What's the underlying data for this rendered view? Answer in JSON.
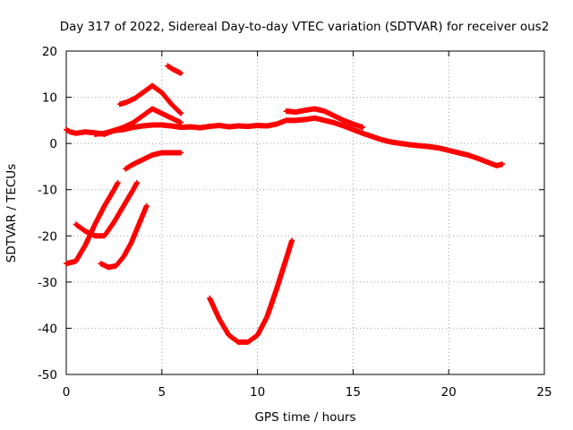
{
  "chart_data": {
    "type": "scatter",
    "title": "Day 317 of 2022, Sidereal Day-to-day VTEC variation (SDTVAR) for receiver ous2",
    "xlabel": "GPS time / hours",
    "ylabel": "SDTVAR / TECUs",
    "xlim": [
      0,
      25
    ],
    "ylim": [
      -50,
      20
    ],
    "xticks": [
      0,
      5,
      10,
      15,
      20,
      25
    ],
    "yticks": [
      -50,
      -40,
      -30,
      -20,
      -10,
      0,
      10,
      20
    ],
    "grid": true,
    "marker": "+",
    "series_color": "#ff0000",
    "series": [
      {
        "name": "main band",
        "x": [
          0.0,
          0.2,
          0.5,
          1.0,
          1.5,
          2.0,
          2.5,
          3.0,
          3.5,
          4.0,
          4.5,
          5.0,
          5.5,
          6.0,
          6.5,
          7.0,
          7.5,
          8.0,
          8.5,
          9.0,
          9.5,
          10.0,
          10.5,
          11.0,
          11.5,
          12.0,
          12.5,
          13.0,
          13.5,
          14.0,
          14.5,
          15.0,
          15.5,
          16.0,
          16.5,
          17.0,
          17.5,
          18.0,
          18.5,
          19.0,
          19.5,
          20.0,
          20.5,
          21.0,
          21.5,
          22.0,
          22.5,
          22.8
        ],
        "y": [
          3.0,
          2.5,
          2.2,
          2.5,
          2.3,
          2.0,
          2.8,
          3.0,
          3.5,
          3.8,
          4.0,
          4.0,
          3.8,
          3.5,
          3.6,
          3.4,
          3.7,
          3.9,
          3.6,
          3.8,
          3.7,
          3.9,
          3.8,
          4.2,
          5.0,
          5.0,
          5.2,
          5.5,
          5.0,
          4.5,
          3.8,
          3.0,
          2.2,
          1.5,
          0.8,
          0.3,
          0.0,
          -0.3,
          -0.5,
          -0.7,
          -1.0,
          -1.5,
          -2.0,
          -2.5,
          -3.2,
          -4.0,
          -4.8,
          -4.5
        ]
      },
      {
        "name": "arc rising to 7",
        "x": [
          1.5,
          2.0,
          2.5,
          3.0,
          3.5,
          4.0,
          4.5,
          5.0,
          5.5,
          6.0
        ],
        "y": [
          2.0,
          2.2,
          2.8,
          3.5,
          4.5,
          6.0,
          7.5,
          6.5,
          5.5,
          4.5
        ]
      },
      {
        "name": "arc peaking at 12",
        "x": [
          2.8,
          3.2,
          3.6,
          4.0,
          4.5,
          5.0,
          5.5,
          6.0
        ],
        "y": [
          8.5,
          9.0,
          9.8,
          11.0,
          12.5,
          11.0,
          8.5,
          6.5
        ]
      },
      {
        "name": "segment near 16",
        "x": [
          5.3,
          5.6,
          6.0
        ],
        "y": [
          16.8,
          16.0,
          15.2
        ]
      },
      {
        "name": "arc near -2",
        "x": [
          3.1,
          3.5,
          4.0,
          4.5,
          5.0,
          5.5,
          6.0
        ],
        "y": [
          -5.5,
          -4.5,
          -3.5,
          -2.5,
          -2.0,
          -2.0,
          -2.0
        ]
      },
      {
        "name": "upper cluster",
        "x": [
          11.5,
          12.0,
          12.5,
          13.0,
          13.5,
          14.0,
          14.5,
          15.0,
          15.5
        ],
        "y": [
          7.0,
          6.8,
          7.2,
          7.5,
          7.0,
          6.0,
          5.0,
          4.2,
          3.5
        ]
      },
      {
        "name": "line from -26",
        "x": [
          0.0,
          0.5,
          1.0,
          1.5,
          2.0,
          2.5,
          2.7
        ],
        "y": [
          -26.0,
          -25.5,
          -22.0,
          -17.5,
          -13.5,
          -10.0,
          -8.5
        ]
      },
      {
        "name": "line from -17",
        "x": [
          0.5,
          1.0,
          1.5,
          2.0,
          2.5,
          3.0,
          3.5,
          3.7
        ],
        "y": [
          -17.5,
          -19.0,
          -20.0,
          -20.0,
          -17.0,
          -13.5,
          -10.0,
          -8.5
        ]
      },
      {
        "name": "line from -26 second",
        "x": [
          1.8,
          2.2,
          2.6,
          3.0,
          3.4,
          3.8,
          4.2
        ],
        "y": [
          -26.0,
          -26.8,
          -26.5,
          -24.5,
          -21.5,
          -17.5,
          -13.5
        ]
      },
      {
        "name": "deep arc",
        "x": [
          7.5,
          8.0,
          8.5,
          9.0,
          9.5,
          10.0,
          10.5,
          11.0,
          11.5,
          11.8
        ],
        "y": [
          -33.5,
          -38.0,
          -41.5,
          -43.0,
          -43.0,
          -41.5,
          -37.5,
          -31.5,
          -25.0,
          -21.0
        ]
      }
    ]
  }
}
